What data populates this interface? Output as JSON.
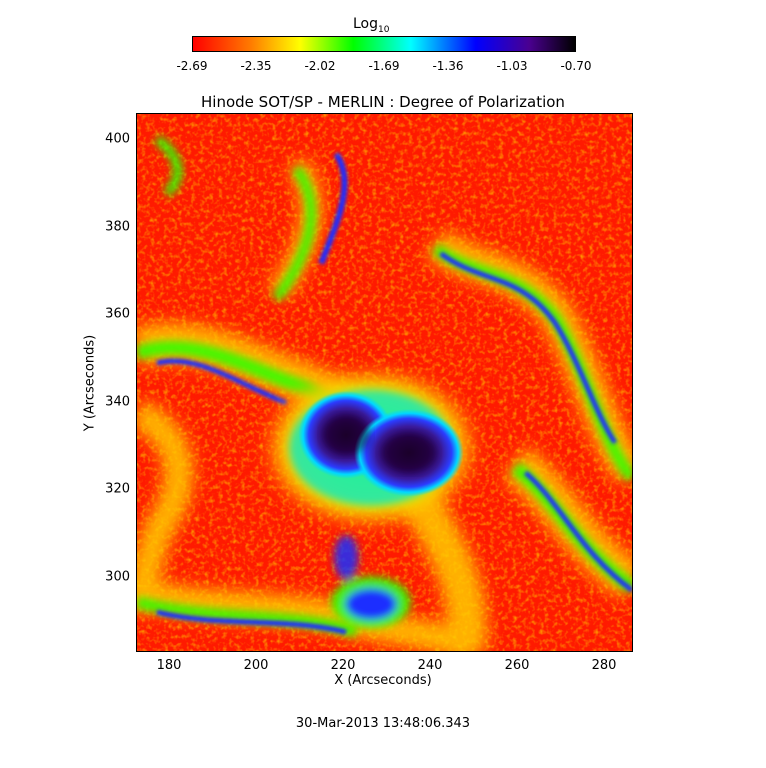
{
  "colorbar": {
    "label": "Log",
    "label_subscript": "10",
    "ticks": [
      "-2.69",
      "-2.35",
      "-2.02",
      "-1.69",
      "-1.36",
      "-1.03",
      "-0.70"
    ],
    "range": [
      -2.69,
      -0.7
    ],
    "colors": [
      "#ff0000",
      "#ff8000",
      "#ffff00",
      "#00ff00",
      "#00ffff",
      "#0000ff",
      "#000000"
    ]
  },
  "plot": {
    "title": "Hinode SOT/SP - MERLIN : Degree of Polarization",
    "x_label": "X (Arcseconds)",
    "y_label": "Y (Arcseconds)",
    "x_range": [
      172,
      286
    ],
    "y_range": [
      283,
      406
    ],
    "x_ticks": [
      "180",
      "200",
      "220",
      "240",
      "260",
      "280"
    ],
    "y_ticks": [
      "300",
      "320",
      "340",
      "360",
      "380",
      "400"
    ]
  },
  "timestamp": "30-Mar-2013 13:48:06.343"
}
